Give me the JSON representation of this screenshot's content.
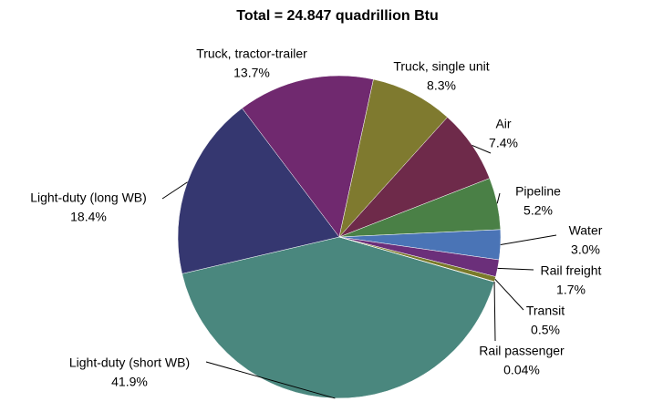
{
  "chart_data": {
    "type": "pie",
    "title": "Total = 24.847 quadrillion Btu",
    "categories": [
      "Light-duty (short WB)",
      "Light-duty (long WB)",
      "Truck, tractor-trailer",
      "Truck, single unit",
      "Air",
      "Pipeline",
      "Water",
      "Rail freight",
      "Transit",
      "Rail passenger"
    ],
    "values": [
      41.9,
      18.4,
      13.7,
      8.3,
      7.4,
      5.2,
      3.0,
      1.7,
      0.5,
      0.04
    ],
    "value_labels": [
      "41.9%",
      "18.4%",
      "13.7%",
      "8.3%",
      "7.4%",
      "5.2%",
      "3.0%",
      "1.7%",
      "0.5%",
      "0.04%"
    ],
    "colors": [
      "#4a877e",
      "#353770",
      "#70296f",
      "#7f7a2f",
      "#6e2a4a",
      "#4a8046",
      "#4a74b6",
      "#6b2f7a",
      "#7a7a2a",
      "#6f6f2f"
    ]
  }
}
